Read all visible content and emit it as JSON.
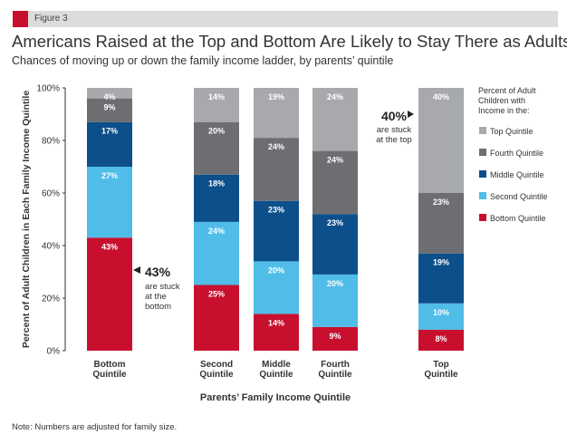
{
  "figure_label": "Figure 3",
  "note": "Note: Numbers are adjusted for family size.",
  "chart_data": {
    "type": "bar",
    "stacked": true,
    "title": "Americans Raised at the Top and Bottom Are Likely to Stay There as Adults",
    "subtitle": "Chances of moving up or down the family income ladder, by parents’ quintile",
    "xlabel": "Parents’ Family Income Quintile",
    "ylabel": "Percent of Adult Children in Each Family Income Quintile",
    "ylim": [
      0,
      100
    ],
    "yticks": [
      "0%",
      "20%",
      "40%",
      "60%",
      "80%",
      "100%"
    ],
    "categories": [
      "Bottom Quintile",
      "Second Quintile",
      "Middle Quintile",
      "Fourth Quintile",
      "Top Quintile"
    ],
    "category_lines": [
      [
        "Bottom",
        "Quintile"
      ],
      [
        "Second",
        "Quintile"
      ],
      [
        "Middle",
        "Quintile"
      ],
      [
        "Fourth",
        "Quintile"
      ],
      [
        "Top",
        "Quintile"
      ]
    ],
    "series": [
      {
        "name": "Bottom Quintile",
        "color": "#c8102e",
        "values": [
          43,
          25,
          14,
          9,
          8
        ]
      },
      {
        "name": "Second Quintile",
        "color": "#4fbde8",
        "values": [
          27,
          24,
          20,
          20,
          10
        ]
      },
      {
        "name": "Middle Quintile",
        "color": "#0d4f8b",
        "values": [
          17,
          18,
          23,
          23,
          19
        ]
      },
      {
        "name": "Fourth Quintile",
        "color": "#6d6e71",
        "values": [
          9,
          20,
          24,
          24,
          23
        ]
      },
      {
        "name": "Top Quintile",
        "color": "#a7a9ac",
        "values": [
          4,
          14,
          19,
          24,
          40
        ]
      }
    ],
    "legend_title": [
      "Percent of Adult",
      "Children with",
      "Income in the:"
    ],
    "legend_placement": "right",
    "annotations": [
      {
        "big": "43%",
        "lines": [
          "are stuck",
          "at the",
          "bottom"
        ]
      },
      {
        "big": "40%",
        "lines": [
          "are stuck",
          "at the top"
        ]
      }
    ]
  }
}
